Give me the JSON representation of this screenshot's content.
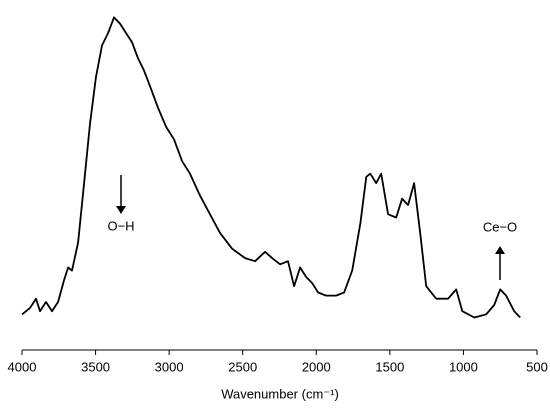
{
  "chart_data": {
    "type": "line",
    "x_label": "Wavenumber (cm⁻¹)",
    "annotations": [
      "O−H",
      "Ce−O"
    ],
    "xlim": [
      4000,
      500
    ],
    "xticks": [
      4000,
      3500,
      3000,
      2500,
      2000,
      1500,
      1000,
      500
    ],
    "ylim": [
      0,
      103
    ],
    "series": [
      {
        "color": "#000000",
        "x": [
          4000,
          3946,
          3905,
          3878,
          3837,
          3796,
          3755,
          3714,
          3687,
          3660,
          3619,
          3578,
          3538,
          3497,
          3456,
          3415,
          3375,
          3334,
          3293,
          3252,
          3212,
          3171,
          3130,
          3075,
          3021,
          2967,
          2912,
          2858,
          2790,
          2722,
          2654,
          2572,
          2484,
          2416,
          2348,
          2300,
          2246,
          2192,
          2151,
          2110,
          2069,
          2028,
          1988,
          1933,
          1865,
          1811,
          1756,
          1701,
          1660,
          1633,
          1593,
          1559,
          1512,
          1457,
          1417,
          1376,
          1335,
          1294,
          1253,
          1185,
          1104,
          1049,
          1008,
          926,
          846,
          791,
          750,
          710,
          655,
          614
        ],
        "values": [
          5,
          7,
          10,
          6,
          9,
          6,
          9,
          16,
          20,
          19,
          28,
          47,
          66,
          81,
          91,
          95,
          100,
          98,
          95,
          92,
          87,
          83,
          78,
          71,
          65,
          61,
          54,
          50,
          43,
          37,
          31,
          26,
          23,
          22,
          25,
          23,
          21,
          22,
          14,
          20,
          17,
          15,
          12,
          11,
          11,
          12,
          19,
          34,
          49,
          50,
          47,
          50,
          37,
          36,
          42,
          40,
          47,
          31,
          14,
          10,
          10,
          13,
          6,
          4,
          5,
          8,
          13,
          11,
          6,
          4
        ]
      }
    ]
  }
}
